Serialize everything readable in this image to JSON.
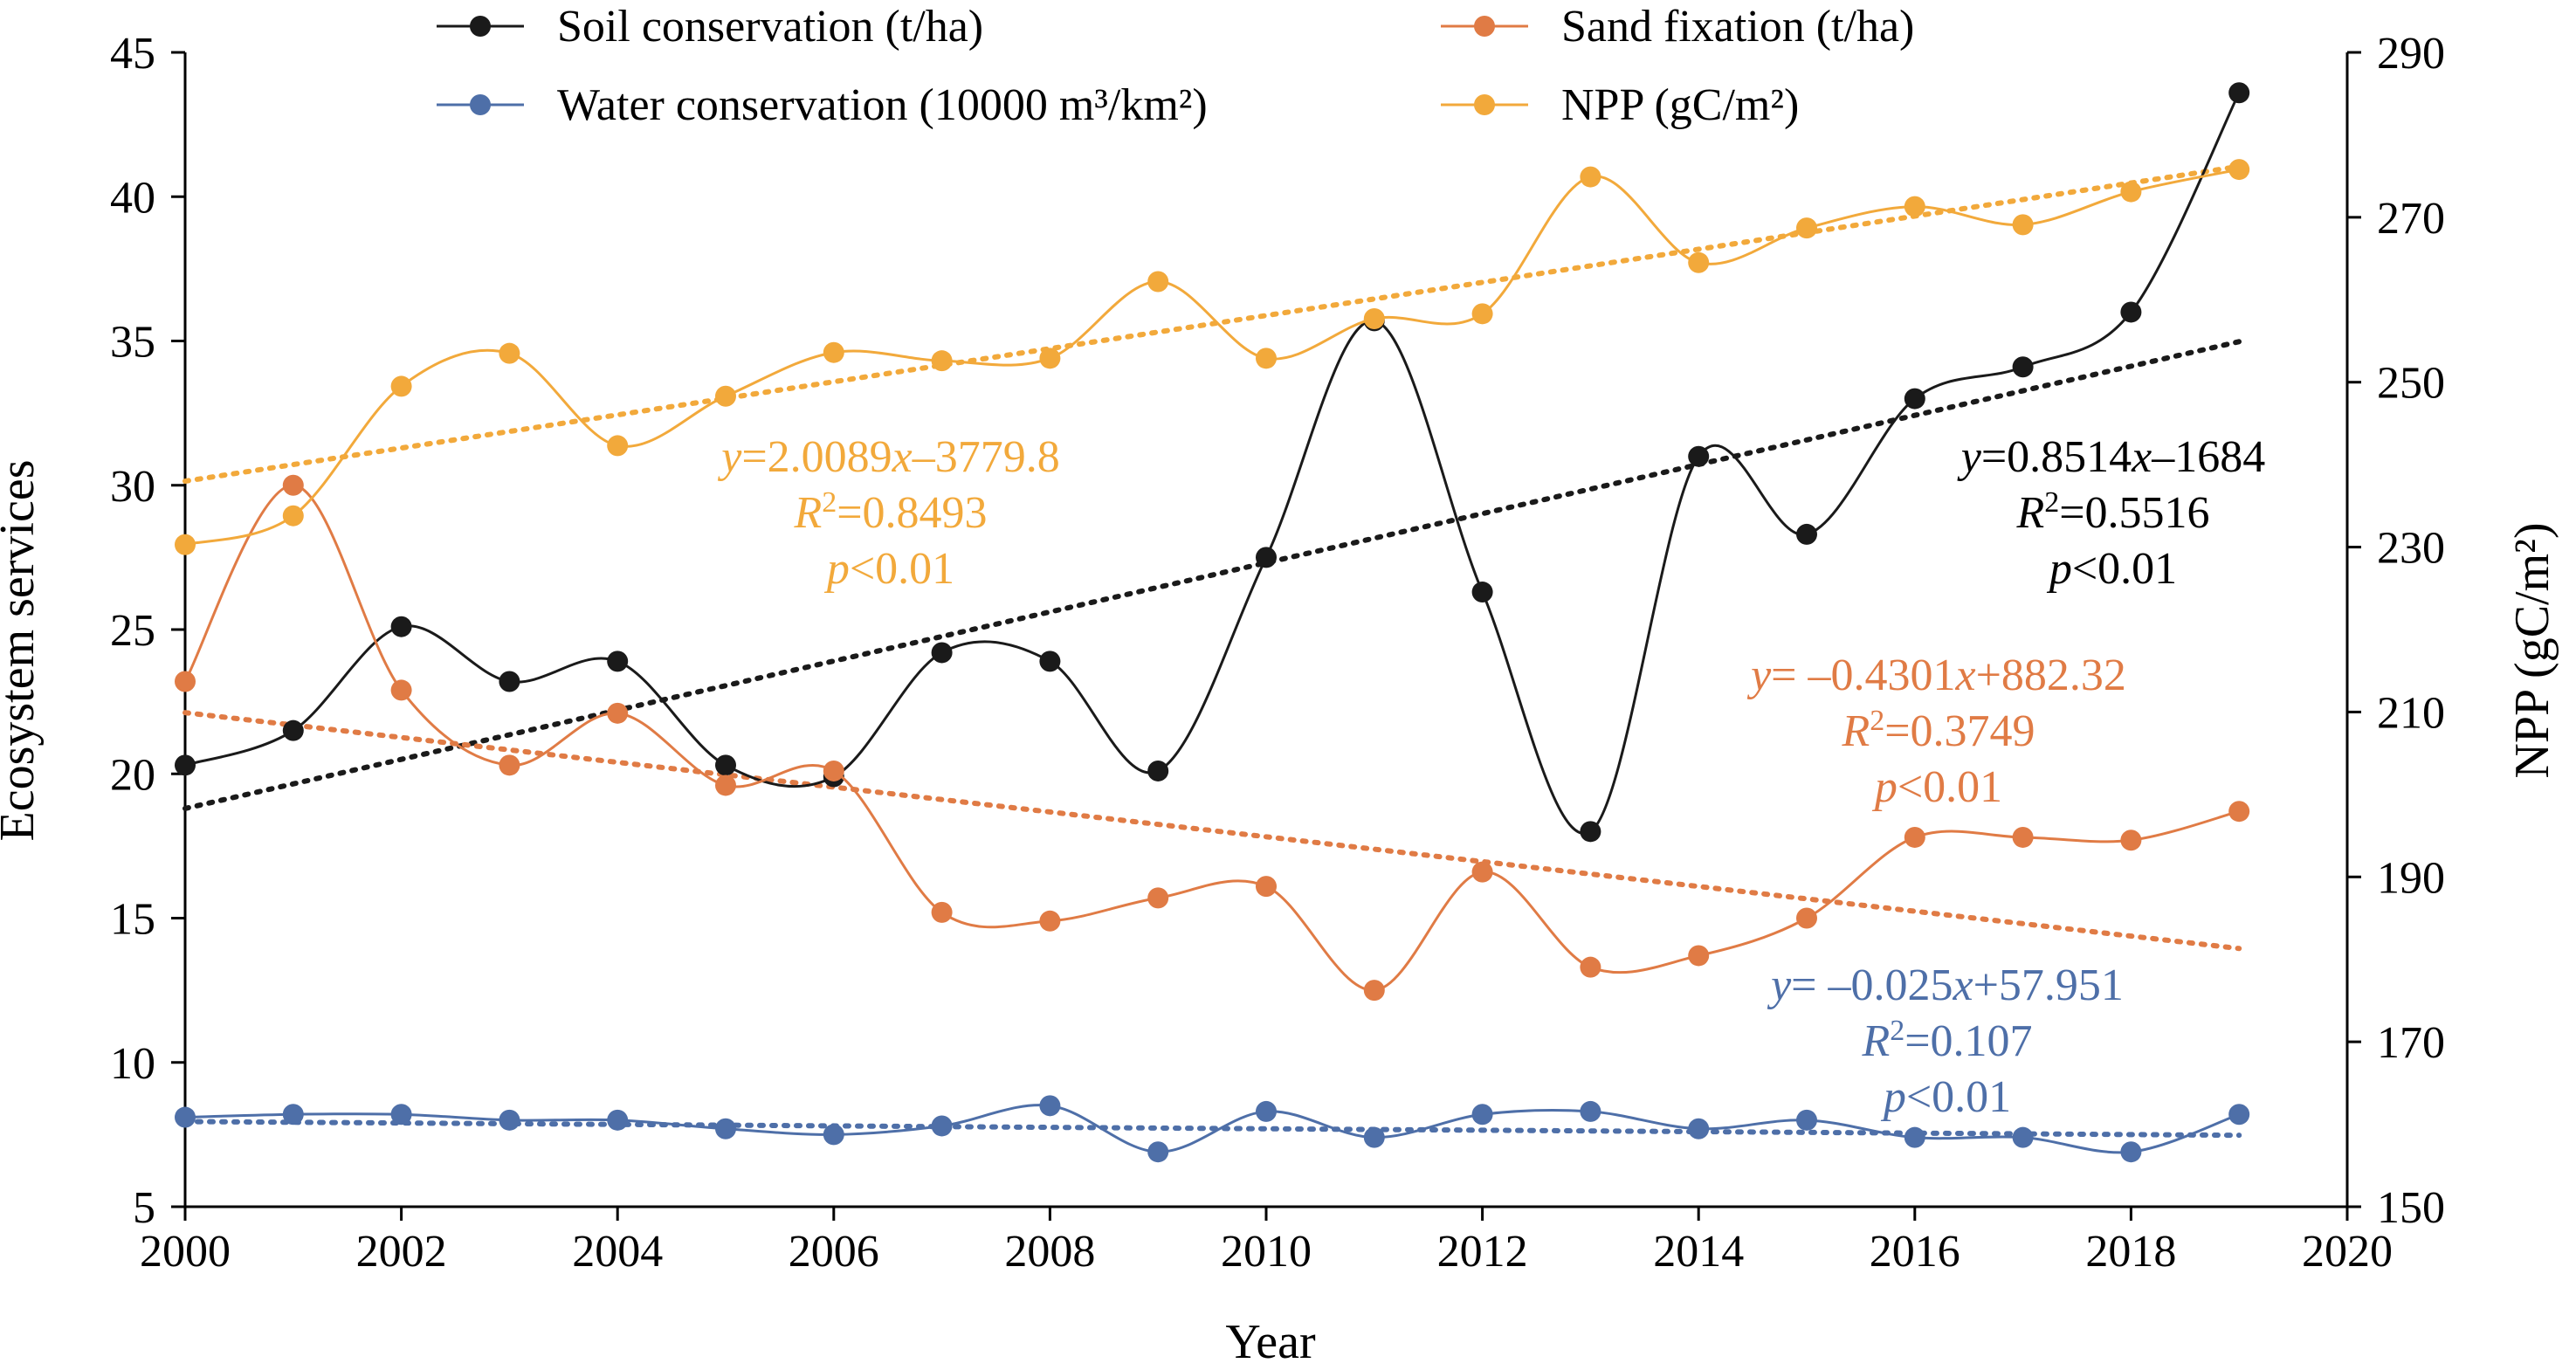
{
  "chart_data": {
    "type": "line",
    "x": [
      2000,
      2001,
      2002,
      2003,
      2004,
      2005,
      2006,
      2007,
      2008,
      2009,
      2010,
      2011,
      2012,
      2013,
      2014,
      2015,
      2016,
      2017,
      2018,
      2019
    ],
    "xlabel": "Year",
    "ylabel": "Ecosystem services",
    "y2label": "NPP (gC/m²)",
    "xlim": [
      2000,
      2020
    ],
    "ylim": [
      5,
      45
    ],
    "y2lim": [
      150,
      290
    ],
    "xticks": [
      "2000",
      "2002",
      "2004",
      "2006",
      "2008",
      "2010",
      "2012",
      "2014",
      "2016",
      "2018",
      "2020"
    ],
    "yticks": [
      "5",
      "10",
      "15",
      "20",
      "25",
      "30",
      "35",
      "40",
      "45"
    ],
    "y2ticks": [
      "150",
      "170",
      "190",
      "210",
      "230",
      "250",
      "270",
      "290"
    ],
    "legend_position": "top",
    "series": [
      {
        "name": "Soil conservation (t/ha)",
        "axis": "left",
        "color": "#1a1a1a",
        "values": [
          20.3,
          21.5,
          25.1,
          23.2,
          23.9,
          20.3,
          19.9,
          24.2,
          23.9,
          20.1,
          27.5,
          35.7,
          26.3,
          18.0,
          31.0,
          28.3,
          33.0,
          34.1,
          36.0,
          43.6
        ],
        "trend": {
          "slope": 0.8514,
          "intercept": -1684,
          "style": "dotted"
        }
      },
      {
        "name": "Sand fixation (t/ha)",
        "axis": "left",
        "color": "#e07b45",
        "values": [
          23.2,
          30.0,
          22.9,
          20.3,
          22.1,
          19.6,
          20.1,
          15.2,
          14.9,
          15.7,
          16.1,
          12.5,
          16.6,
          13.3,
          13.7,
          15.0,
          17.8,
          17.8,
          17.7,
          18.7
        ],
        "trend": {
          "slope": -0.4301,
          "intercept": 882.32,
          "style": "dotted"
        }
      },
      {
        "name": "Water conservation (10000 m³/km²)",
        "axis": "left",
        "color": "#4e6fa8",
        "values": [
          8.1,
          8.2,
          8.2,
          8.0,
          8.0,
          7.7,
          7.5,
          7.8,
          8.5,
          6.9,
          8.3,
          7.4,
          8.2,
          8.3,
          7.7,
          8.0,
          7.4,
          7.4,
          6.9,
          8.2
        ],
        "trend": {
          "slope": -0.025,
          "intercept": 57.951,
          "style": "dotted"
        }
      },
      {
        "name": "NPP (gC/m²)",
        "axis": "right",
        "color": "#f2a93b",
        "values": [
          230.3,
          233.8,
          249.5,
          253.5,
          242.3,
          248.3,
          253.6,
          252.6,
          252.9,
          262.2,
          252.9,
          257.7,
          258.3,
          274.9,
          264.5,
          268.7,
          271.3,
          269.1,
          273.1,
          275.8
        ],
        "trend": {
          "slope": 2.0089,
          "intercept": -3779.8,
          "style": "dotted"
        }
      }
    ],
    "annotations": [
      {
        "series": "NPP (gC/m²)",
        "color": "#f2a93b",
        "lines": [
          [
            {
              "t": "y",
              "i": true
            },
            {
              "t": "=2.0089",
              "i": false
            },
            {
              "t": "x",
              "i": true
            },
            {
              "t": "–3779.8",
              "i": false
            }
          ],
          [
            {
              "t": "R",
              "i": true
            },
            {
              "t": "2",
              "i": false,
              "sup": true
            },
            {
              "t": "=0.8493",
              "i": false
            }
          ],
          [
            {
              "t": "p",
              "i": true
            },
            {
              "t": "<0.01",
              "i": false
            }
          ]
        ]
      },
      {
        "series": "Soil conservation (t/ha)",
        "color": "#000000",
        "lines": [
          [
            {
              "t": "y",
              "i": true
            },
            {
              "t": "=0.8514",
              "i": false
            },
            {
              "t": "x",
              "i": true
            },
            {
              "t": "–1684",
              "i": false
            }
          ],
          [
            {
              "t": "R",
              "i": true
            },
            {
              "t": "2",
              "i": false,
              "sup": true
            },
            {
              "t": "=0.5516",
              "i": false
            }
          ],
          [
            {
              "t": "p",
              "i": true
            },
            {
              "t": "<0.01",
              "i": false
            }
          ]
        ]
      },
      {
        "series": "Sand fixation (t/ha)",
        "color": "#e07b45",
        "lines": [
          [
            {
              "t": "y",
              "i": true
            },
            {
              "t": "= –0.4301",
              "i": false
            },
            {
              "t": "x",
              "i": true
            },
            {
              "t": "+882.32",
              "i": false
            }
          ],
          [
            {
              "t": "R",
              "i": true
            },
            {
              "t": "2",
              "i": false,
              "sup": true
            },
            {
              "t": "=0.3749",
              "i": false
            }
          ],
          [
            {
              "t": "p",
              "i": true
            },
            {
              "t": "<0.01",
              "i": false
            }
          ]
        ]
      },
      {
        "series": "Water conservation (10000 m³/km²)",
        "color": "#4e6fa8",
        "lines": [
          [
            {
              "t": "y",
              "i": true
            },
            {
              "t": "= –0.025",
              "i": false
            },
            {
              "t": "x",
              "i": true
            },
            {
              "t": "+57.951",
              "i": false
            }
          ],
          [
            {
              "t": "R",
              "i": true
            },
            {
              "t": "2",
              "i": false,
              "sup": true
            },
            {
              "t": "=0.107",
              "i": false
            }
          ],
          [
            {
              "t": "p",
              "i": true
            },
            {
              "t": "<0.01",
              "i": false
            }
          ]
        ]
      }
    ]
  }
}
